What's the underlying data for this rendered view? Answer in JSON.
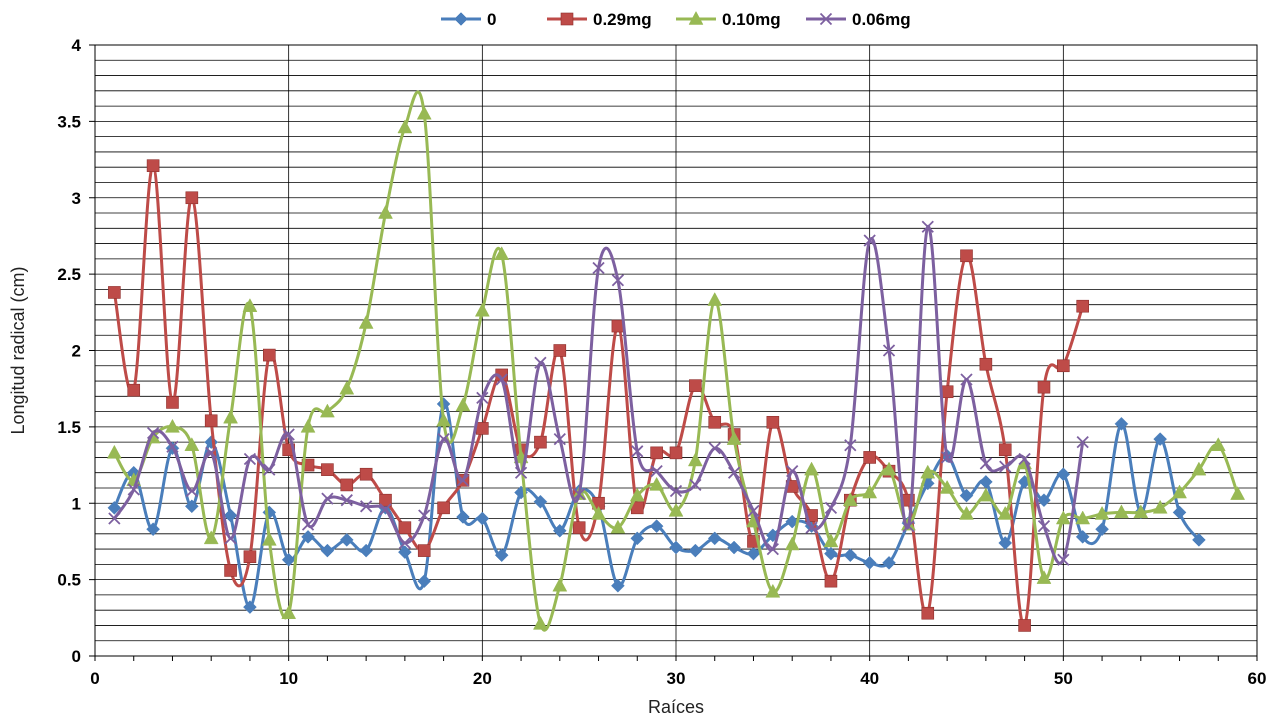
{
  "chart_data": {
    "type": "line",
    "xlabel": "Raíces",
    "ylabel": "Longitud radical (cm)",
    "xlim": [
      0,
      60
    ],
    "ylim": [
      0,
      4
    ],
    "xticks": [
      0,
      10,
      20,
      30,
      40,
      50,
      60
    ],
    "yticks": [
      0,
      0.5,
      1,
      1.5,
      2,
      2.5,
      3,
      3.5,
      4
    ],
    "ytick_labels": [
      "0",
      "0.5",
      "1",
      "1.5",
      "2",
      "2.5",
      "3",
      "3.5",
      "4"
    ],
    "grid": true,
    "legend_position": "top",
    "series": [
      {
        "name": "0",
        "color": "#4a7ebb",
        "marker": "diamond",
        "values": [
          0.97,
          1.2,
          0.83,
          1.36,
          0.98,
          1.4,
          0.92,
          0.32,
          0.94,
          0.63,
          0.78,
          0.69,
          0.76,
          0.69,
          0.97,
          0.68,
          0.49,
          1.65,
          0.91,
          0.9,
          0.66,
          1.07,
          1.01,
          0.82,
          1.08,
          0.98,
          0.46,
          0.77,
          0.85,
          0.71,
          0.69,
          0.77,
          0.71,
          0.67,
          0.79,
          0.88,
          0.85,
          0.67,
          0.66,
          0.61,
          0.61,
          0.87,
          1.13,
          1.31,
          1.05,
          1.14,
          0.74,
          1.14,
          1.02,
          1.19,
          0.78,
          0.83,
          1.52,
          0.94,
          1.42,
          0.94,
          0.76
        ]
      },
      {
        "name": "0.29mg",
        "color": "#be4b48",
        "marker": "square",
        "values": [
          2.38,
          1.74,
          3.21,
          1.66,
          3.0,
          1.54,
          0.56,
          0.65,
          1.97,
          1.35,
          1.25,
          1.22,
          1.12,
          1.19,
          1.02,
          0.84,
          0.69,
          0.97,
          1.15,
          1.49,
          1.84,
          1.35,
          1.4,
          2.0,
          0.84,
          1.0,
          2.16,
          0.97,
          1.33,
          1.33,
          1.77,
          1.53,
          1.45,
          0.75,
          1.53,
          1.11,
          0.92,
          0.49,
          1.02,
          1.3,
          1.21,
          1.02,
          0.28,
          1.73,
          2.62,
          1.91,
          1.35,
          0.2,
          1.76,
          1.9,
          2.29
        ]
      },
      {
        "name": "0.10mg",
        "color": "#98b954",
        "marker": "triangle",
        "values": [
          1.33,
          1.15,
          1.43,
          1.5,
          1.38,
          0.77,
          1.56,
          2.29,
          0.76,
          0.28,
          1.5,
          1.6,
          1.75,
          2.18,
          2.9,
          3.46,
          3.55,
          1.54,
          1.64,
          2.26,
          2.63,
          1.3,
          0.21,
          0.46,
          1.06,
          0.93,
          0.84,
          1.05,
          1.12,
          0.95,
          1.28,
          2.33,
          1.42,
          0.88,
          0.42,
          0.73,
          1.22,
          0.75,
          1.02,
          1.07,
          1.22,
          0.86,
          1.2,
          1.1,
          0.93,
          1.05,
          0.93,
          1.26,
          0.51,
          0.9,
          0.9,
          0.93,
          0.94,
          0.94,
          0.97,
          1.07,
          1.22,
          1.38,
          1.06
        ]
      },
      {
        "name": "0.06mg",
        "color": "#7d60a0",
        "marker": "x",
        "values": [
          0.9,
          1.09,
          1.46,
          1.37,
          1.08,
          1.33,
          0.77,
          1.29,
          1.22,
          1.45,
          0.86,
          1.03,
          1.02,
          0.98,
          0.96,
          0.74,
          0.92,
          1.42,
          1.15,
          1.69,
          1.81,
          1.2,
          1.92,
          1.42,
          1.06,
          2.54,
          2.46,
          1.34,
          1.21,
          1.08,
          1.12,
          1.36,
          1.2,
          0.95,
          0.7,
          1.21,
          0.84,
          0.97,
          1.38,
          2.72,
          2.0,
          0.85,
          2.81,
          1.3,
          1.81,
          1.26,
          1.24,
          1.29,
          0.85,
          0.63,
          1.4
        ]
      }
    ]
  }
}
